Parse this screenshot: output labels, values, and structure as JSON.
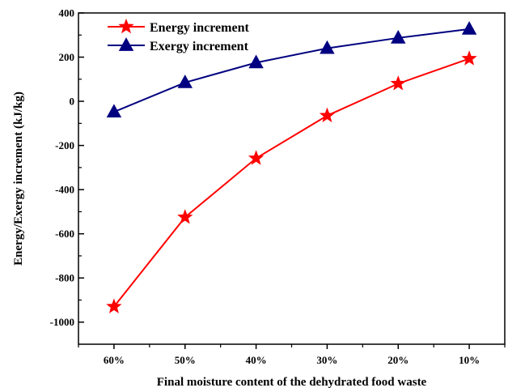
{
  "chart_data": {
    "type": "line",
    "title": "",
    "categories": [
      "60%",
      "50%",
      "40%",
      "30%",
      "20%",
      "10%"
    ],
    "xlabel": "Final moisture content of the dehydrated food waste",
    "ylabel": "Energy/Exergy increment (kJ/kg)",
    "ylim": [
      -1100,
      400
    ],
    "yticks": [
      -1000,
      -800,
      -600,
      -400,
      -200,
      0,
      200,
      400
    ],
    "legend_position": "top-left",
    "grid": false,
    "series": [
      {
        "name": "Energy increment",
        "values": [
          -930,
          -525,
          -258,
          -65,
          80,
          193
        ],
        "color": "#ff0000",
        "marker": "star"
      },
      {
        "name": "Exergy increment",
        "values": [
          -48,
          85,
          175,
          240,
          287,
          327
        ],
        "color": "#000080",
        "marker": "triangle"
      }
    ]
  }
}
